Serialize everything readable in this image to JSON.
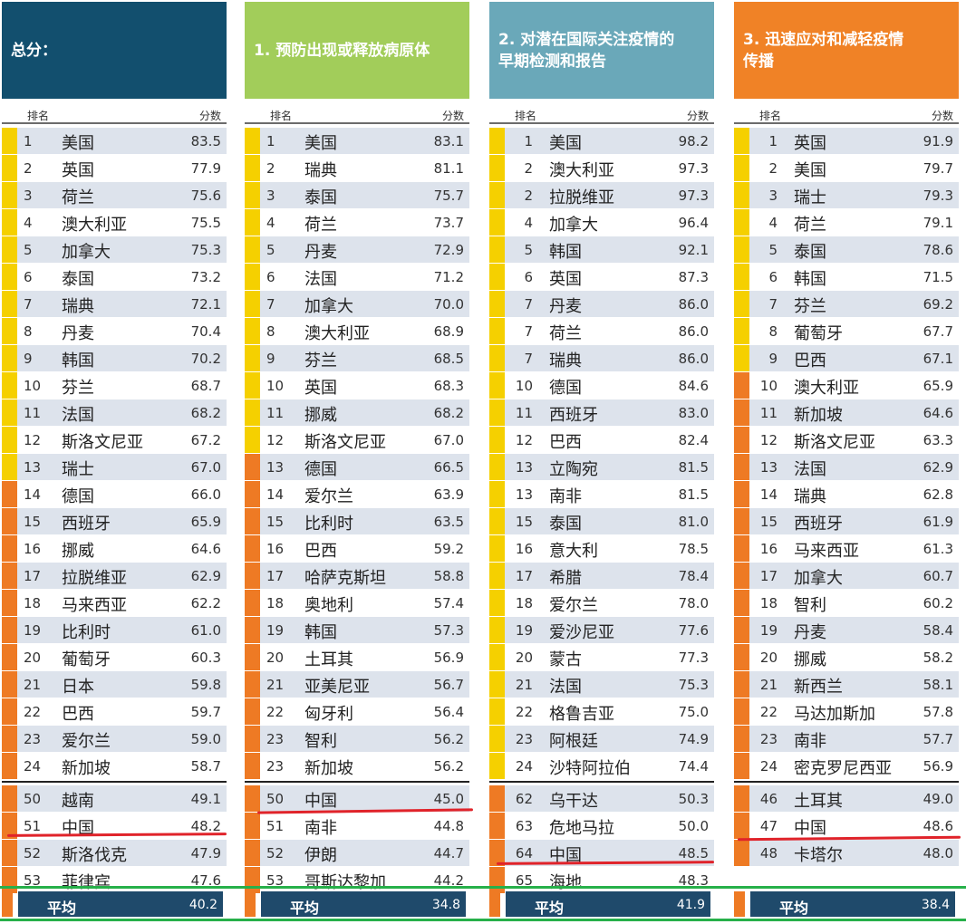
{
  "colors": {
    "yellow": "#f5d000",
    "orange": "#ee7a24",
    "avg_bar": "#1f4a6b",
    "row_alt": "#dde3ec",
    "highlight_red": "#e0232a",
    "frame_green": "#27b04a"
  },
  "panels": [
    {
      "title": "总分：",
      "header_color": "#124f6e",
      "rank_label": "排名",
      "score_label": "分数",
      "rank_align": "left",
      "top_rows": [
        {
          "rank": "1",
          "name": "美国",
          "score": "83.5",
          "tier": "yellow"
        },
        {
          "rank": "2",
          "name": "英国",
          "score": "77.9",
          "tier": "yellow"
        },
        {
          "rank": "3",
          "name": "荷兰",
          "score": "75.6",
          "tier": "yellow"
        },
        {
          "rank": "4",
          "name": "澳大利亚",
          "score": "75.5",
          "tier": "yellow"
        },
        {
          "rank": "5",
          "name": "加拿大",
          "score": "75.3",
          "tier": "yellow"
        },
        {
          "rank": "6",
          "name": "泰国",
          "score": "73.2",
          "tier": "yellow"
        },
        {
          "rank": "7",
          "name": "瑞典",
          "score": "72.1",
          "tier": "yellow"
        },
        {
          "rank": "8",
          "name": "丹麦",
          "score": "70.4",
          "tier": "yellow"
        },
        {
          "rank": "9",
          "name": "韩国",
          "score": "70.2",
          "tier": "yellow"
        },
        {
          "rank": "10",
          "name": "芬兰",
          "score": "68.7",
          "tier": "yellow"
        },
        {
          "rank": "11",
          "name": "法国",
          "score": "68.2",
          "tier": "yellow"
        },
        {
          "rank": "12",
          "name": "斯洛文尼亚",
          "score": "67.2",
          "tier": "yellow"
        },
        {
          "rank": "13",
          "name": "瑞士",
          "score": "67.0",
          "tier": "yellow"
        },
        {
          "rank": "14",
          "name": "德国",
          "score": "66.0",
          "tier": "orange"
        },
        {
          "rank": "15",
          "name": "西班牙",
          "score": "65.9",
          "tier": "orange"
        },
        {
          "rank": "16",
          "name": "挪威",
          "score": "64.6",
          "tier": "orange"
        },
        {
          "rank": "17",
          "name": "拉脱维亚",
          "score": "62.9",
          "tier": "orange"
        },
        {
          "rank": "18",
          "name": "马来西亚",
          "score": "62.2",
          "tier": "orange"
        },
        {
          "rank": "19",
          "name": "比利时",
          "score": "61.0",
          "tier": "orange"
        },
        {
          "rank": "20",
          "name": "葡萄牙",
          "score": "60.3",
          "tier": "orange"
        },
        {
          "rank": "21",
          "name": "日本",
          "score": "59.8",
          "tier": "orange"
        },
        {
          "rank": "22",
          "name": "巴西",
          "score": "59.7",
          "tier": "orange"
        },
        {
          "rank": "23",
          "name": "爱尔兰",
          "score": "59.0",
          "tier": "orange"
        },
        {
          "rank": "24",
          "name": "新加坡",
          "score": "58.7",
          "tier": "orange"
        }
      ],
      "bottom_rows": [
        {
          "rank": "50",
          "name": "越南",
          "score": "49.1",
          "tier": "orange"
        },
        {
          "rank": "51",
          "name": "中国",
          "score": "48.2",
          "tier": "orange"
        },
        {
          "rank": "52",
          "name": "斯洛伐克",
          "score": "47.9",
          "tier": "orange"
        },
        {
          "rank": "53",
          "name": "菲律宾",
          "score": "47.6",
          "tier": "orange"
        }
      ],
      "avg_label": "平均",
      "avg_value": "40.2"
    },
    {
      "title": "1. 预防出现或释放病原体",
      "header_color": "#a2cd5a",
      "rank_label": "排名",
      "score_label": "分数",
      "rank_align": "left",
      "top_rows": [
        {
          "rank": "1",
          "name": "美国",
          "score": "83.1",
          "tier": "yellow"
        },
        {
          "rank": "2",
          "name": "瑞典",
          "score": "81.1",
          "tier": "yellow"
        },
        {
          "rank": "3",
          "name": "泰国",
          "score": "75.7",
          "tier": "yellow"
        },
        {
          "rank": "4",
          "name": "荷兰",
          "score": "73.7",
          "tier": "yellow"
        },
        {
          "rank": "5",
          "name": "丹麦",
          "score": "72.9",
          "tier": "yellow"
        },
        {
          "rank": "6",
          "name": "法国",
          "score": "71.2",
          "tier": "yellow"
        },
        {
          "rank": "7",
          "name": "加拿大",
          "score": "70.0",
          "tier": "yellow"
        },
        {
          "rank": "8",
          "name": "澳大利亚",
          "score": "68.9",
          "tier": "yellow"
        },
        {
          "rank": "9",
          "name": "芬兰",
          "score": "68.5",
          "tier": "yellow"
        },
        {
          "rank": "10",
          "name": "英国",
          "score": "68.3",
          "tier": "yellow"
        },
        {
          "rank": "11",
          "name": "挪威",
          "score": "68.2",
          "tier": "yellow"
        },
        {
          "rank": "12",
          "name": "斯洛文尼亚",
          "score": "67.0",
          "tier": "yellow"
        },
        {
          "rank": "13",
          "name": "德国",
          "score": "66.5",
          "tier": "orange"
        },
        {
          "rank": "14",
          "name": "爱尔兰",
          "score": "63.9",
          "tier": "orange"
        },
        {
          "rank": "15",
          "name": "比利时",
          "score": "63.5",
          "tier": "orange"
        },
        {
          "rank": "16",
          "name": "巴西",
          "score": "59.2",
          "tier": "orange"
        },
        {
          "rank": "17",
          "name": "哈萨克斯坦",
          "score": "58.8",
          "tier": "orange"
        },
        {
          "rank": "18",
          "name": "奥地利",
          "score": "57.4",
          "tier": "orange"
        },
        {
          "rank": "19",
          "name": "韩国",
          "score": "57.3",
          "tier": "orange"
        },
        {
          "rank": "20",
          "name": "土耳其",
          "score": "56.9",
          "tier": "orange"
        },
        {
          "rank": "21",
          "name": "亚美尼亚",
          "score": "56.7",
          "tier": "orange"
        },
        {
          "rank": "22",
          "name": "匈牙利",
          "score": "56.4",
          "tier": "orange"
        },
        {
          "rank": "23",
          "name": "智利",
          "score": "56.2",
          "tier": "orange"
        },
        {
          "rank": "23",
          "name": "新加坡",
          "score": "56.2",
          "tier": "orange"
        }
      ],
      "bottom_rows": [
        {
          "rank": "50",
          "name": "中国",
          "score": "45.0",
          "tier": "orange"
        },
        {
          "rank": "51",
          "name": "南非",
          "score": "44.8",
          "tier": "orange"
        },
        {
          "rank": "52",
          "name": "伊朗",
          "score": "44.7",
          "tier": "orange"
        },
        {
          "rank": "53",
          "name": "哥斯达黎加",
          "score": "44.2",
          "tier": "orange"
        }
      ],
      "avg_label": "平均",
      "avg_value": "34.8"
    },
    {
      "title": "2. 对潜在国际关注疫情的\n早期检测和报告",
      "header_color": "#6aa8b9",
      "rank_label": "排名",
      "score_label": "分数",
      "rank_align": "right",
      "top_rows": [
        {
          "rank": "1",
          "name": "美国",
          "score": "98.2",
          "tier": "yellow"
        },
        {
          "rank": "2",
          "name": "澳大利亚",
          "score": "97.3",
          "tier": "yellow"
        },
        {
          "rank": "2",
          "name": "拉脱维亚",
          "score": "97.3",
          "tier": "yellow"
        },
        {
          "rank": "4",
          "name": "加拿大",
          "score": "96.4",
          "tier": "yellow"
        },
        {
          "rank": "5",
          "name": "韩国",
          "score": "92.1",
          "tier": "yellow"
        },
        {
          "rank": "6",
          "name": "英国",
          "score": "87.3",
          "tier": "yellow"
        },
        {
          "rank": "7",
          "name": "丹麦",
          "score": "86.0",
          "tier": "yellow"
        },
        {
          "rank": "7",
          "name": "荷兰",
          "score": "86.0",
          "tier": "yellow"
        },
        {
          "rank": "7",
          "name": "瑞典",
          "score": "86.0",
          "tier": "yellow"
        },
        {
          "rank": "10",
          "name": "德国",
          "score": "84.6",
          "tier": "yellow"
        },
        {
          "rank": "11",
          "name": "西班牙",
          "score": "83.0",
          "tier": "yellow"
        },
        {
          "rank": "12",
          "name": "巴西",
          "score": "82.4",
          "tier": "yellow"
        },
        {
          "rank": "13",
          "name": "立陶宛",
          "score": "81.5",
          "tier": "yellow"
        },
        {
          "rank": "13",
          "name": "南非",
          "score": "81.5",
          "tier": "yellow"
        },
        {
          "rank": "15",
          "name": "泰国",
          "score": "81.0",
          "tier": "yellow"
        },
        {
          "rank": "16",
          "name": "意大利",
          "score": "78.5",
          "tier": "yellow"
        },
        {
          "rank": "17",
          "name": "希腊",
          "score": "78.4",
          "tier": "yellow"
        },
        {
          "rank": "18",
          "name": "爱尔兰",
          "score": "78.0",
          "tier": "yellow"
        },
        {
          "rank": "19",
          "name": "爱沙尼亚",
          "score": "77.6",
          "tier": "yellow"
        },
        {
          "rank": "20",
          "name": "蒙古",
          "score": "77.3",
          "tier": "yellow"
        },
        {
          "rank": "21",
          "name": "法国",
          "score": "75.3",
          "tier": "yellow"
        },
        {
          "rank": "22",
          "name": "格鲁吉亚",
          "score": "75.0",
          "tier": "yellow"
        },
        {
          "rank": "23",
          "name": "阿根廷",
          "score": "74.9",
          "tier": "yellow"
        },
        {
          "rank": "24",
          "name": "沙特阿拉伯",
          "score": "74.4",
          "tier": "yellow"
        }
      ],
      "bottom_rows": [
        {
          "rank": "62",
          "name": "乌干达",
          "score": "50.3",
          "tier": "orange"
        },
        {
          "rank": "63",
          "name": "危地马拉",
          "score": "50.0",
          "tier": "orange"
        },
        {
          "rank": "64",
          "name": "中国",
          "score": "48.5",
          "tier": "orange"
        },
        {
          "rank": "65",
          "name": "海地",
          "score": "48.3",
          "tier": "orange"
        }
      ],
      "avg_label": "平均",
      "avg_value": "41.9"
    },
    {
      "title": "3. 迅速应对和减轻疫情\n传播",
      "header_color": "#f08226",
      "rank_label": "排名",
      "score_label": "分数",
      "rank_align": "right",
      "top_rows": [
        {
          "rank": "1",
          "name": "英国",
          "score": "91.9",
          "tier": "yellow"
        },
        {
          "rank": "2",
          "name": "美国",
          "score": "79.7",
          "tier": "yellow"
        },
        {
          "rank": "3",
          "name": "瑞士",
          "score": "79.3",
          "tier": "yellow"
        },
        {
          "rank": "4",
          "name": "荷兰",
          "score": "79.1",
          "tier": "yellow"
        },
        {
          "rank": "5",
          "name": "泰国",
          "score": "78.6",
          "tier": "yellow"
        },
        {
          "rank": "6",
          "name": "韩国",
          "score": "71.5",
          "tier": "yellow"
        },
        {
          "rank": "7",
          "name": "芬兰",
          "score": "69.2",
          "tier": "yellow"
        },
        {
          "rank": "8",
          "name": "葡萄牙",
          "score": "67.7",
          "tier": "yellow"
        },
        {
          "rank": "9",
          "name": "巴西",
          "score": "67.1",
          "tier": "yellow"
        },
        {
          "rank": "10",
          "name": "澳大利亚",
          "score": "65.9",
          "tier": "orange"
        },
        {
          "rank": "11",
          "name": "新加坡",
          "score": "64.6",
          "tier": "orange"
        },
        {
          "rank": "12",
          "name": "斯洛文尼亚",
          "score": "63.3",
          "tier": "orange"
        },
        {
          "rank": "13",
          "name": "法国",
          "score": "62.9",
          "tier": "orange"
        },
        {
          "rank": "14",
          "name": "瑞典",
          "score": "62.8",
          "tier": "orange"
        },
        {
          "rank": "15",
          "name": "西班牙",
          "score": "61.9",
          "tier": "orange"
        },
        {
          "rank": "16",
          "name": "马来西亚",
          "score": "61.3",
          "tier": "orange"
        },
        {
          "rank": "17",
          "name": "加拿大",
          "score": "60.7",
          "tier": "orange"
        },
        {
          "rank": "18",
          "name": "智利",
          "score": "60.2",
          "tier": "orange"
        },
        {
          "rank": "19",
          "name": "丹麦",
          "score": "58.4",
          "tier": "orange"
        },
        {
          "rank": "20",
          "name": "挪威",
          "score": "58.2",
          "tier": "orange"
        },
        {
          "rank": "21",
          "name": "新西兰",
          "score": "58.1",
          "tier": "orange"
        },
        {
          "rank": "22",
          "name": "马达加斯加",
          "score": "57.8",
          "tier": "orange"
        },
        {
          "rank": "23",
          "name": "南非",
          "score": "57.7",
          "tier": "orange"
        },
        {
          "rank": "24",
          "name": "密克罗尼西亚",
          "score": "56.9",
          "tier": "orange"
        }
      ],
      "bottom_rows": [
        {
          "rank": "46",
          "name": "土耳其",
          "score": "49.0",
          "tier": "orange"
        },
        {
          "rank": "47",
          "name": "中国",
          "score": "48.6",
          "tier": "orange"
        },
        {
          "rank": "48",
          "name": "卡塔尔",
          "score": "48.0",
          "tier": "orange"
        }
      ],
      "avg_label": "平均",
      "avg_value": "38.4"
    }
  ]
}
